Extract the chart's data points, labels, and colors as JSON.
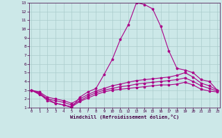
{
  "x_ticks": [
    0,
    1,
    2,
    3,
    4,
    5,
    6,
    7,
    8,
    9,
    10,
    11,
    12,
    13,
    14,
    15,
    16,
    17,
    18,
    19,
    20,
    21,
    22,
    23
  ],
  "y_ticks": [
    1,
    2,
    3,
    4,
    5,
    6,
    7,
    8,
    9,
    10,
    11,
    12,
    13
  ],
  "xlim": [
    -0.3,
    23.3
  ],
  "ylim": [
    1,
    13
  ],
  "xlabel": "Windchill (Refroidissement éolien,°C)",
  "bg_color": "#cce8e8",
  "grid_color": "#aacccc",
  "line_color": "#aa0088",
  "curve1_x": [
    0,
    1,
    2,
    3,
    4,
    5,
    6,
    7,
    8,
    9,
    10,
    11,
    12,
    13,
    14,
    15,
    16,
    17,
    18,
    19,
    20,
    21,
    22,
    23
  ],
  "curve1_y": [
    3.0,
    2.5,
    2.0,
    1.5,
    1.3,
    1.0,
    2.2,
    2.8,
    3.2,
    4.8,
    6.5,
    8.8,
    10.5,
    13.0,
    12.8,
    12.3,
    10.3,
    7.5,
    5.5,
    5.3,
    5.0,
    4.2,
    4.0,
    3.0
  ],
  "curve2_x": [
    0,
    1,
    2,
    3,
    4,
    5,
    6,
    7,
    8,
    9,
    10,
    11,
    12,
    13,
    14,
    15,
    16,
    17,
    18,
    19,
    20,
    21,
    22,
    23
  ],
  "curve2_y": [
    3.0,
    2.8,
    2.2,
    2.0,
    1.8,
    1.5,
    2.0,
    2.5,
    2.9,
    3.2,
    3.5,
    3.7,
    3.9,
    4.1,
    4.2,
    4.3,
    4.4,
    4.5,
    4.7,
    5.0,
    4.5,
    3.8,
    3.5,
    3.0
  ],
  "curve3_x": [
    0,
    1,
    2,
    3,
    4,
    5,
    6,
    7,
    8,
    9,
    10,
    11,
    12,
    13,
    14,
    15,
    16,
    17,
    18,
    19,
    20,
    21,
    22,
    23
  ],
  "curve3_y": [
    3.0,
    2.7,
    2.0,
    1.8,
    1.6,
    1.3,
    1.8,
    2.3,
    2.7,
    3.0,
    3.2,
    3.4,
    3.5,
    3.7,
    3.8,
    3.9,
    4.0,
    4.1,
    4.2,
    4.4,
    4.0,
    3.5,
    3.2,
    2.9
  ],
  "curve4_x": [
    0,
    1,
    2,
    3,
    4,
    5,
    6,
    7,
    8,
    9,
    10,
    11,
    12,
    13,
    14,
    15,
    16,
    17,
    18,
    19,
    20,
    21,
    22,
    23
  ],
  "curve4_y": [
    3.0,
    2.6,
    1.8,
    1.5,
    1.3,
    1.1,
    1.7,
    2.1,
    2.5,
    2.8,
    3.0,
    3.1,
    3.2,
    3.3,
    3.4,
    3.5,
    3.6,
    3.6,
    3.7,
    3.9,
    3.6,
    3.1,
    2.9,
    2.8
  ],
  "figsize": [
    3.2,
    2.0
  ],
  "dpi": 100
}
